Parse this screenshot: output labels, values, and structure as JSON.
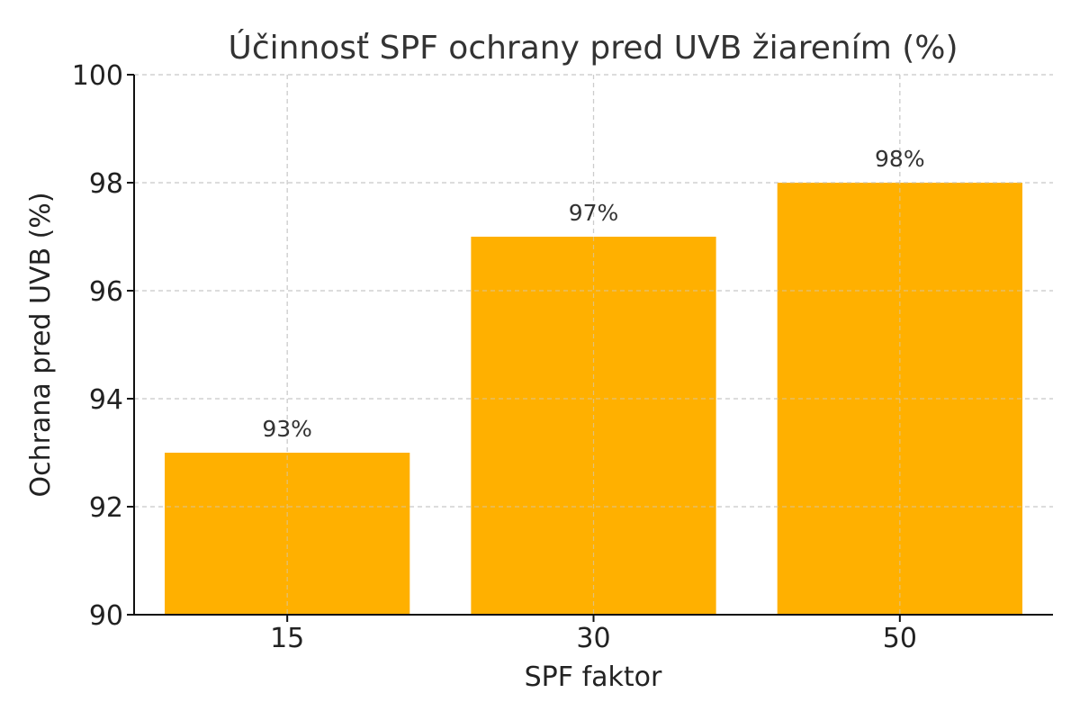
{
  "chart_data": {
    "type": "bar",
    "title": "Účinnosť SPF ochrany pred UVB žiarením (%)",
    "xlabel": "SPF faktor",
    "ylabel": "Ochrana pred UVB (%)",
    "categories": [
      "15",
      "30",
      "50"
    ],
    "values": [
      93,
      97,
      98
    ],
    "data_labels": [
      "93%",
      "97%",
      "98%"
    ],
    "yticks": [
      90,
      92,
      94,
      96,
      98,
      100
    ],
    "ylim": [
      90,
      100
    ],
    "grid": true,
    "bar_color": "#FFB000"
  }
}
